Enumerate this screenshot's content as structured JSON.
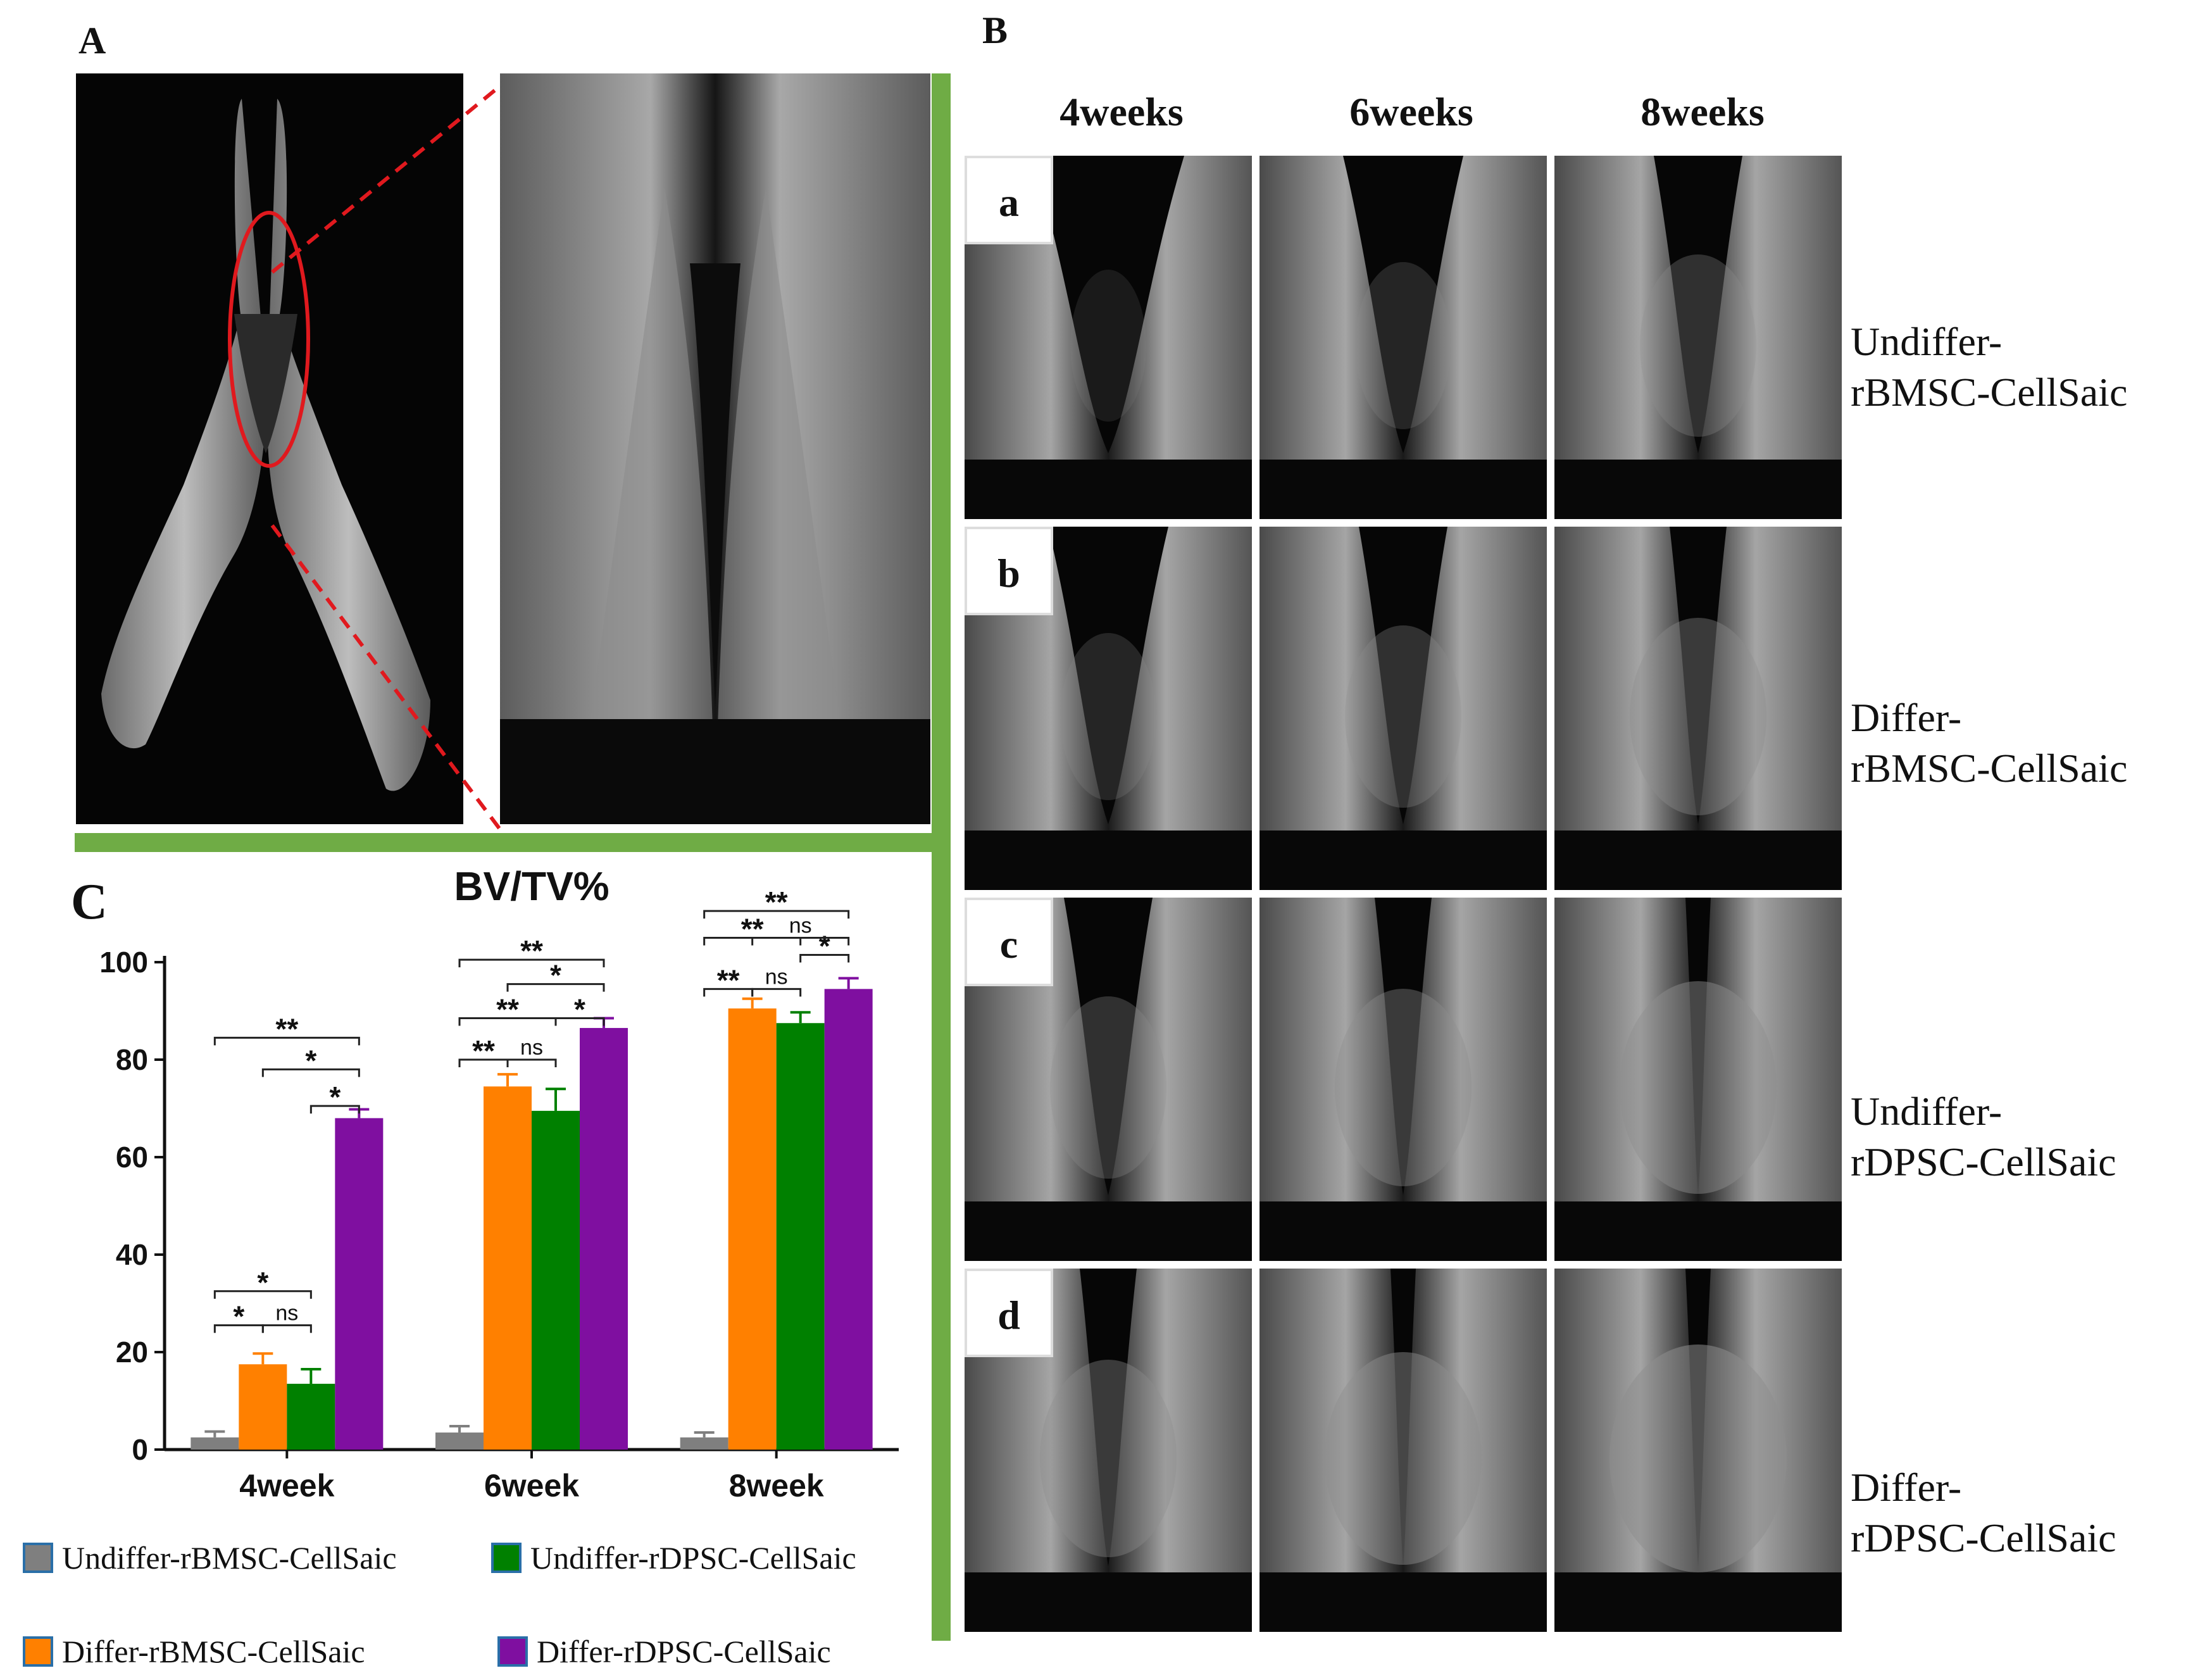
{
  "panels": {
    "A": {
      "letter": "A"
    },
    "B": {
      "letter": "B",
      "weeks": [
        "4weeks",
        "6weeks",
        "8weeks"
      ],
      "rows": [
        {
          "letter": "a",
          "label_line1": "Undiffer-",
          "label_line2": "rBMSC-CellSaic"
        },
        {
          "letter": "b",
          "label_line1": "Differ-",
          "label_line2": "rBMSC-CellSaic"
        },
        {
          "letter": "c",
          "label_line1": "Undiffer-",
          "label_line2": "rDPSC-CellSaic"
        },
        {
          "letter": "d",
          "label_line1": "Differ-",
          "label_line2": "rDPSC-CellSaic"
        }
      ]
    },
    "C": {
      "letter": "C"
    }
  },
  "colors": {
    "frame_green": "#6fac45",
    "zoom_red": "#e0191e",
    "Undiffer-rBMSC-CellSaic": "#7f7f7f",
    "Differ-rBMSC-CellSaic": "#ff8000",
    "Undiffer-rDPSC-CellSaic": "#008000",
    "Differ-rDPSC-CellSaic": "#7f0fa0"
  },
  "legend": [
    {
      "label": "Undiffer-rBMSC-CellSaic",
      "color": "#7f7f7f"
    },
    {
      "label": "Undiffer-rDPSC-CellSaic",
      "color": "#008000"
    },
    {
      "label": "Differ-rBMSC-CellSaic",
      "color": "#ff8000"
    },
    {
      "label": "Differ-rDPSC-CellSaic",
      "color": "#7f0fa0"
    }
  ],
  "chart_data": {
    "type": "bar",
    "title": "BV/TV%",
    "xlabel": "",
    "ylabel": "",
    "ylim": [
      0,
      100
    ],
    "yticks": [
      0,
      20,
      40,
      60,
      80,
      100
    ],
    "categories": [
      "4week",
      "6week",
      "8week"
    ],
    "series": [
      {
        "name": "Undiffer-rBMSC-CellSaic",
        "values": [
          2.5,
          3.5,
          2.5
        ],
        "errors": [
          1.2,
          1.3,
          1.0
        ]
      },
      {
        "name": "Differ-rBMSC-CellSaic",
        "values": [
          17.5,
          74.5,
          90.5
        ],
        "errors": [
          2.2,
          2.5,
          2.0
        ]
      },
      {
        "name": "Undiffer-rDPSC-CellSaic",
        "values": [
          13.5,
          69.5,
          87.5
        ],
        "errors": [
          3.0,
          4.5,
          2.2
        ]
      },
      {
        "name": "Differ-rDPSC-CellSaic",
        "values": [
          68,
          86.5,
          94.5
        ],
        "errors": [
          1.8,
          2.0,
          2.2
        ]
      }
    ],
    "significance": [
      {
        "group": "4week",
        "from": 1,
        "to": 2,
        "label": "*",
        "y": 25.5
      },
      {
        "group": "4week",
        "from": 2,
        "to": 3,
        "label": "ns",
        "y": 25.5
      },
      {
        "group": "4week",
        "from": 1,
        "to": 3,
        "label": "*",
        "y": 32.5
      },
      {
        "group": "4week",
        "from": 3,
        "to": 4,
        "label": "*",
        "y": 70.5
      },
      {
        "group": "4week",
        "from": 2,
        "to": 4,
        "label": "*",
        "y": 78
      },
      {
        "group": "4week",
        "from": 1,
        "to": 4,
        "label": "**",
        "y": 84.5
      },
      {
        "group": "6week",
        "from": 1,
        "to": 2,
        "label": "**",
        "y": 80
      },
      {
        "group": "6week",
        "from": 2,
        "to": 3,
        "label": "ns",
        "y": 80
      },
      {
        "group": "6week",
        "from": 3,
        "to": 4,
        "label": "*",
        "y": 88.5
      },
      {
        "group": "6week",
        "from": 1,
        "to": 3,
        "label": "**",
        "y": 88.5
      },
      {
        "group": "6week",
        "from": 2,
        "to": 4,
        "label": "*",
        "y": 95.5
      },
      {
        "group": "6week",
        "from": 1,
        "to": 4,
        "label": "**",
        "y": 100.5
      },
      {
        "group": "8week",
        "from": 1,
        "to": 2,
        "label": "**",
        "y": 94.5
      },
      {
        "group": "8week",
        "from": 2,
        "to": 3,
        "label": "ns",
        "y": 94.5
      },
      {
        "group": "8week",
        "from": 3,
        "to": 4,
        "label": "*",
        "y": 101.5
      },
      {
        "group": "8week",
        "from": 1,
        "to": 3,
        "label": "**",
        "y": 105
      },
      {
        "group": "8week",
        "from": 2,
        "to": 4,
        "label": "ns",
        "y": 105
      },
      {
        "group": "8week",
        "from": 1,
        "to": 4,
        "label": "**",
        "y": 110.5
      }
    ]
  }
}
